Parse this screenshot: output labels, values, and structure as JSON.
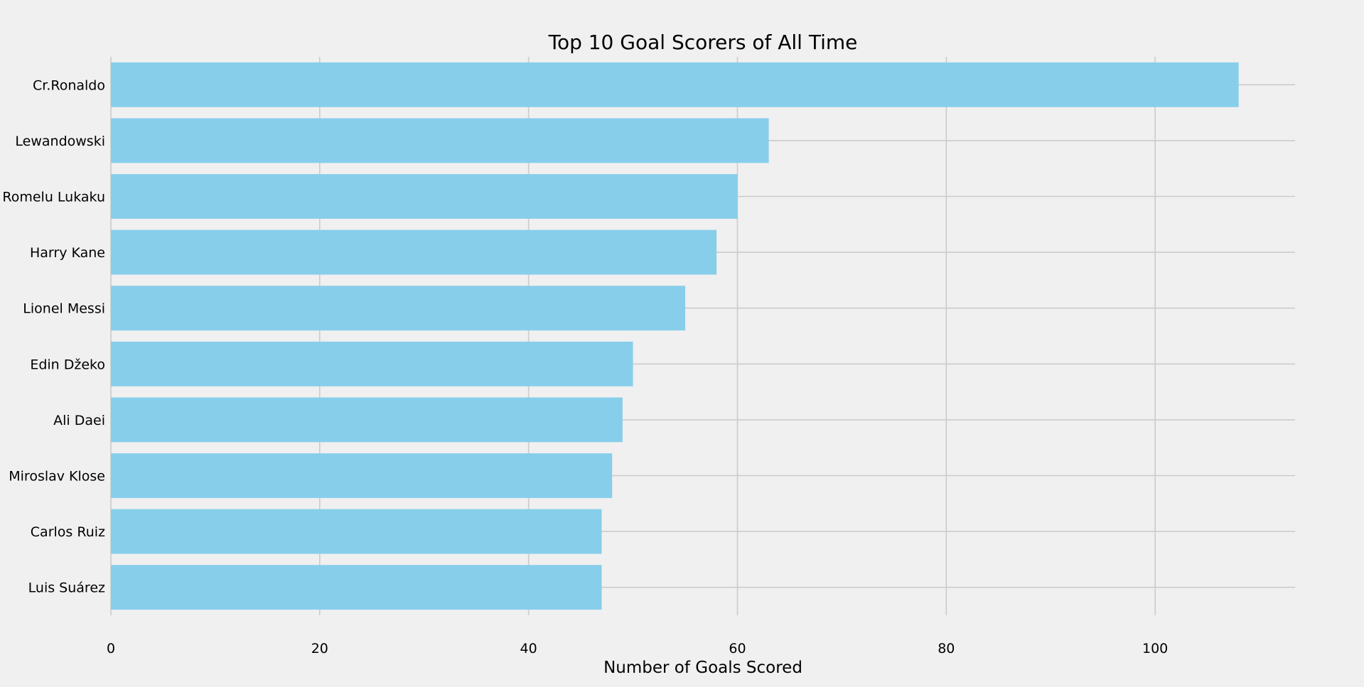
{
  "chart_data": {
    "type": "bar",
    "orientation": "horizontal",
    "title": "Top 10 Goal Scorers of All Time",
    "xlabel": "Number of Goals Scored",
    "ylabel": "",
    "categories": [
      "Cr.Ronaldo",
      "Lewandowski",
      "Romelu Lukaku",
      "Harry Kane",
      "Lionel Messi",
      "Edin Džeko",
      "Ali Daei",
      "Miroslav Klose",
      "Carlos Ruiz",
      "Luis Suárez"
    ],
    "values": [
      108,
      63,
      60,
      58,
      55,
      50,
      49,
      48,
      47,
      47
    ],
    "xlim": [
      0,
      113.4
    ],
    "xticks": [
      0,
      20,
      40,
      60,
      80,
      100
    ],
    "xtick_labels": [
      "0",
      "20",
      "40",
      "60",
      "80",
      "100"
    ],
    "grid": true,
    "bar_color": "#87ceeb",
    "background_color": "#f0f0f0",
    "grid_color": "#cbcbcb"
  }
}
